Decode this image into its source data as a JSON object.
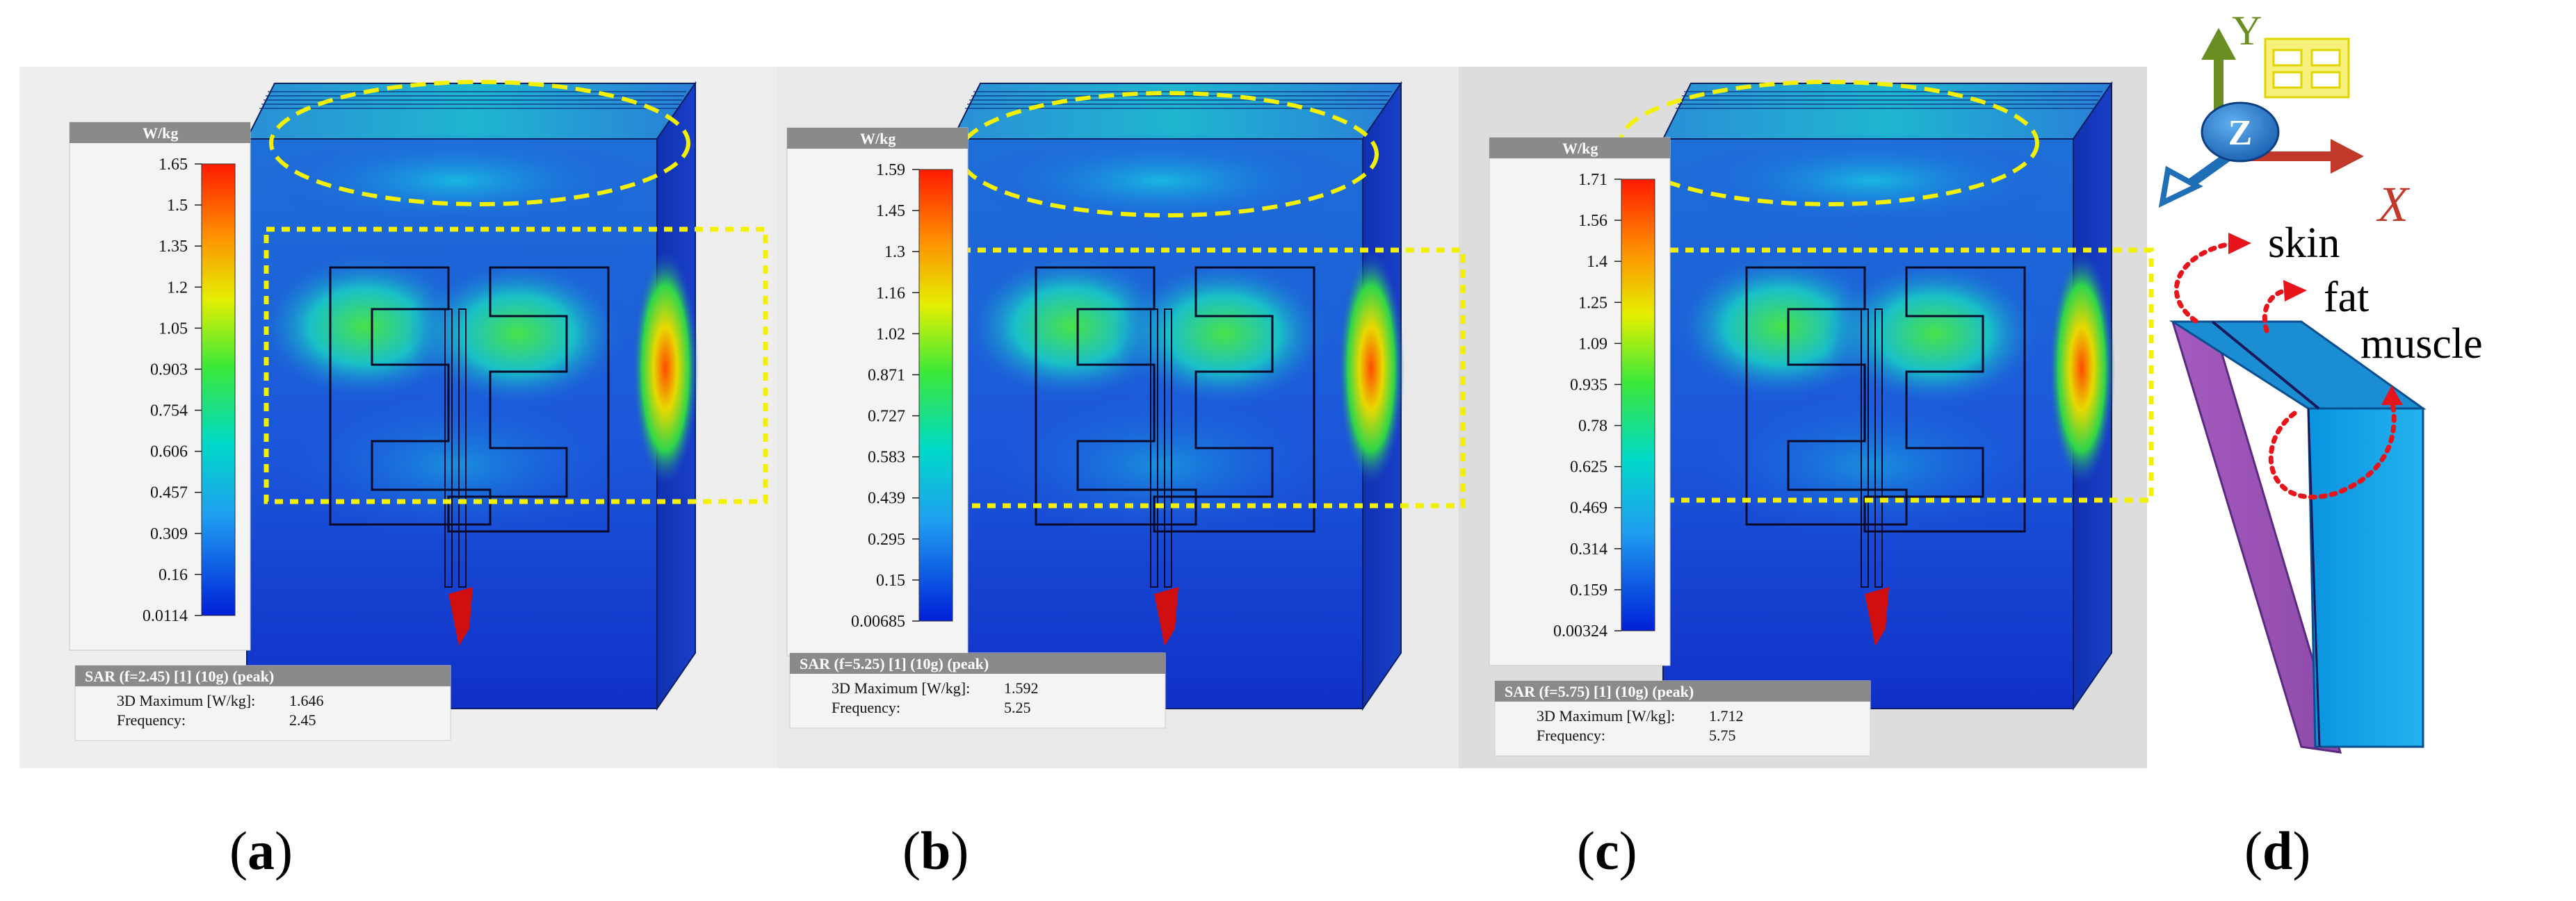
{
  "panels": [
    {
      "id": "a",
      "caption_letter": "a",
      "scale": {
        "unit": "W/kg",
        "ticks": [
          "1.65",
          "1.5",
          "1.35",
          "1.2",
          "1.05",
          "0.903",
          "0.754",
          "0.606",
          "0.457",
          "0.309",
          "0.16",
          "0.0114"
        ]
      },
      "info": {
        "header": "SAR (f=2.45) [1] (10g) (peak)",
        "rows": [
          {
            "label": "3D Maximum [W/kg]:",
            "value": "1.646"
          },
          {
            "label": "Frequency:",
            "value": "2.45"
          }
        ]
      }
    },
    {
      "id": "b",
      "caption_letter": "b",
      "scale": {
        "unit": "W/kg",
        "ticks": [
          "1.59",
          "1.45",
          "1.3",
          "1.16",
          "1.02",
          "0.871",
          "0.727",
          "0.583",
          "0.439",
          "0.295",
          "0.15",
          "0.00685"
        ]
      },
      "info": {
        "header": "SAR (f=5.25) [1] (10g) (peak)",
        "rows": [
          {
            "label": "3D Maximum [W/kg]:",
            "value": "1.592"
          },
          {
            "label": "Frequency:",
            "value": "5.25"
          }
        ]
      }
    },
    {
      "id": "c",
      "caption_letter": "c",
      "scale": {
        "unit": "W/kg",
        "ticks": [
          "1.71",
          "1.56",
          "1.4",
          "1.25",
          "1.09",
          "0.935",
          "0.78",
          "0.625",
          "0.469",
          "0.314",
          "0.159",
          "0.00324"
        ]
      },
      "info": {
        "header": "SAR (f=5.75) [1] (10g) (peak)",
        "rows": [
          {
            "label": "3D Maximum [W/kg]:",
            "value": "1.712"
          },
          {
            "label": "Frequency:",
            "value": "5.75"
          }
        ]
      }
    }
  ],
  "diagram_d": {
    "caption_letter": "d",
    "axes": {
      "x": "X",
      "y": "Y",
      "z": "Z"
    },
    "layers": [
      "skin",
      "fat",
      "muscle"
    ],
    "colors": {
      "x_axis": "#c0392b",
      "y_axis": "#6b8e23",
      "z_axis": "#1e6fb5",
      "fat_layer": "#9b59b6",
      "muscle_layer": "#1ca3e6",
      "arrow": "#e8141b",
      "highlight": "#f2f20a"
    }
  },
  "captions": {
    "open": "(",
    "close": ")"
  }
}
